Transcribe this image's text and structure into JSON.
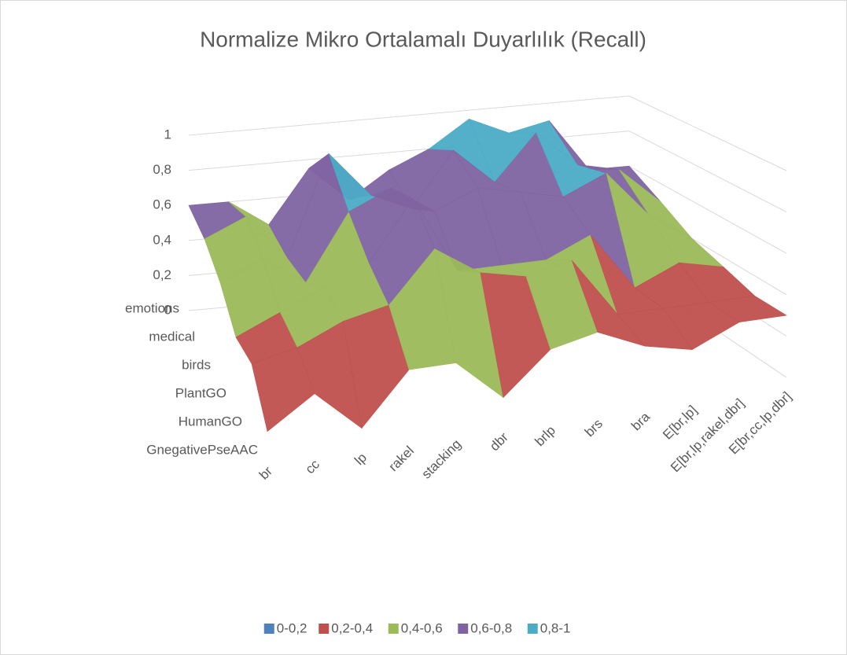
{
  "chart_data": {
    "type": "surface",
    "title": "Normalize Mikro Ortalamalı Duyarlılık (Recall)",
    "categories": [
      "br",
      "cc",
      "lp",
      "rakel",
      "stacking",
      "dbr",
      "brlp",
      "brs",
      "bra",
      "E[br,lp]",
      "E[br,lp,rakel,dbr]",
      "E[br,cc,lp,dbr]"
    ],
    "series": [
      {
        "name": "emotions",
        "values": [
          0.6,
          0.6,
          0.45,
          0.75,
          0.55,
          0.7,
          0.8,
          0.95,
          0.85,
          0.9,
          0.6,
          0.6
        ]
      },
      {
        "name": "medical",
        "values": [
          0.55,
          0.65,
          0.4,
          0.95,
          0.7,
          0.6,
          0.9,
          0.7,
          0.95,
          0.75,
          0.7,
          0.5
        ]
      },
      {
        "name": "birds",
        "values": [
          0.45,
          0.55,
          0.4,
          0.75,
          0.85,
          0.7,
          0.8,
          0.75,
          0.7,
          0.8,
          0.55,
          0.4
        ]
      },
      {
        "name": "PlantGO",
        "values": [
          0.3,
          0.4,
          0.5,
          0.6,
          0.9,
          0.5,
          0.5,
          0.5,
          0.6,
          0.3,
          0.4,
          0.35
        ]
      },
      {
        "name": "HumanGO",
        "values": [
          0.3,
          0.35,
          0.45,
          0.5,
          0.75,
          0.6,
          0.55,
          0.6,
          0.3,
          0.3,
          0.3,
          0.3
        ]
      },
      {
        "name": "GnegativePseAAC",
        "values": [
          0.1,
          0.25,
          0.05,
          0.3,
          0.3,
          0.1,
          0.3,
          0.35,
          0.25,
          0.2,
          0.3,
          0.3
        ]
      }
    ],
    "zlim": [
      0,
      1
    ],
    "zticks": [
      0,
      {
        "value": 0.2,
        "label": "0,2"
      },
      {
        "value": 0.4,
        "label": "0,4"
      },
      {
        "value": 0.6,
        "label": "0,6"
      },
      {
        "value": 0.8,
        "label": "0,8"
      },
      1
    ],
    "bands": [
      {
        "name": "0-0,2",
        "color": "#4f81bd",
        "min": 0,
        "max": 0.2
      },
      {
        "name": "0,2-0,4",
        "color": "#c0504d",
        "min": 0.2,
        "max": 0.4
      },
      {
        "name": "0,4-0,6",
        "color": "#9bbb59",
        "min": 0.4,
        "max": 0.6
      },
      {
        "name": "0,6-0,8",
        "color": "#8064a2",
        "min": 0.6,
        "max": 0.8
      },
      {
        "name": "0,8-1",
        "color": "#4bacc6",
        "min": 0.8,
        "max": 1
      }
    ],
    "grid": true
  }
}
